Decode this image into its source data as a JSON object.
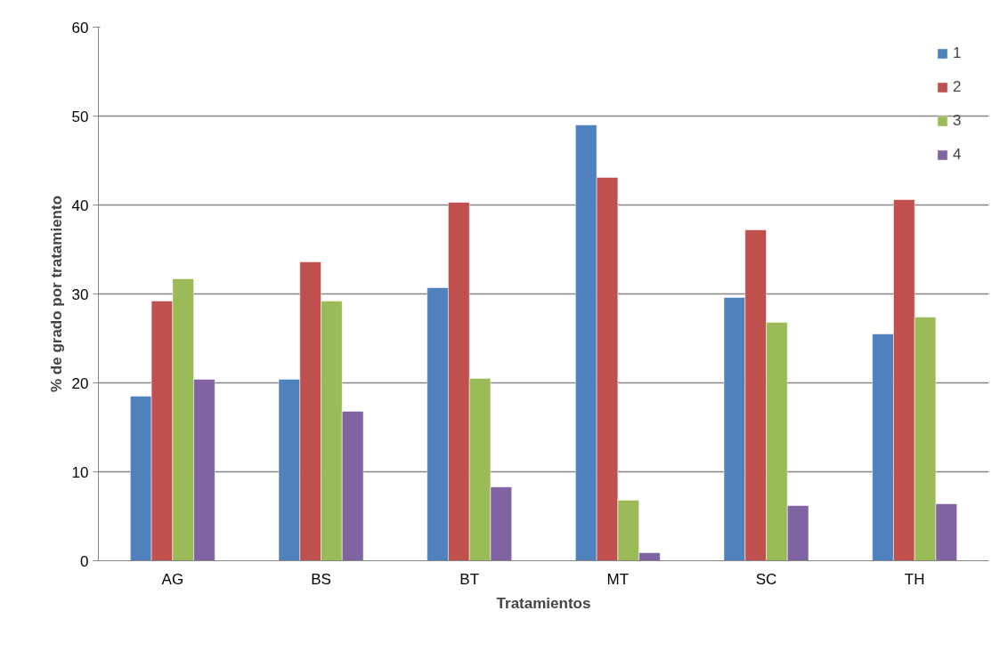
{
  "chart_data": {
    "type": "bar",
    "xlabel": "Tratamientos",
    "ylabel": "% de grado por tratamiento",
    "categories": [
      "AG",
      "BS",
      "BT",
      "MT",
      "SC",
      "TH"
    ],
    "series": [
      {
        "name": "1",
        "color": "#4f81bd",
        "values": [
          18.5,
          20.4,
          30.7,
          49.0,
          29.6,
          25.5
        ]
      },
      {
        "name": "2",
        "color": "#c0504d",
        "values": [
          29.2,
          33.6,
          40.3,
          43.1,
          37.2,
          40.6
        ]
      },
      {
        "name": "3",
        "color": "#9bbb59",
        "values": [
          31.7,
          29.2,
          20.5,
          6.8,
          26.8,
          27.4
        ]
      },
      {
        "name": "4",
        "color": "#8064a2",
        "values": [
          20.4,
          16.8,
          8.3,
          0.9,
          6.2,
          6.4
        ]
      }
    ],
    "ylim": [
      0,
      60
    ],
    "yticks": [
      0,
      10,
      20,
      30,
      40,
      50,
      60
    ],
    "grid": "y",
    "legend": "top right"
  }
}
